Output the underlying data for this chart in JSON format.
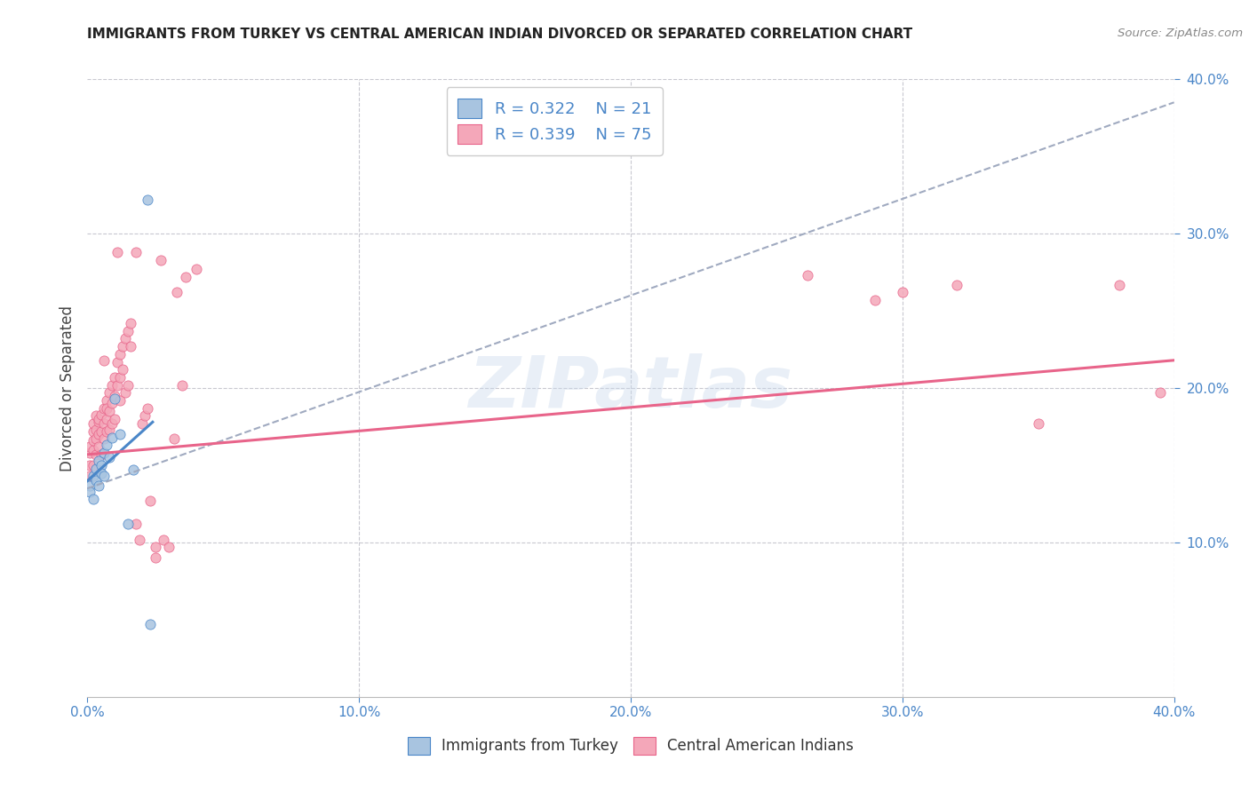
{
  "title": "IMMIGRANTS FROM TURKEY VS CENTRAL AMERICAN INDIAN DIVORCED OR SEPARATED CORRELATION CHART",
  "source": "Source: ZipAtlas.com",
  "ylabel": "Divorced or Separated",
  "xlim": [
    0.0,
    0.4
  ],
  "ylim": [
    0.0,
    0.4
  ],
  "xticks": [
    0.0,
    0.1,
    0.2,
    0.3,
    0.4
  ],
  "yticks": [
    0.1,
    0.2,
    0.3,
    0.4
  ],
  "watermark": "ZIPatlas",
  "legend_r1": "R = 0.322",
  "legend_n1": "N = 21",
  "legend_r2": "R = 0.339",
  "legend_n2": "N = 75",
  "color_turkey": "#a8c4e0",
  "color_central": "#f4a7b9",
  "color_turkey_line": "#4a86c8",
  "color_central_line": "#e8648a",
  "color_dashed": "#a0aac0",
  "turkey_scatter": [
    [
      0.001,
      0.137
    ],
    [
      0.001,
      0.133
    ],
    [
      0.002,
      0.128
    ],
    [
      0.002,
      0.143
    ],
    [
      0.003,
      0.14
    ],
    [
      0.003,
      0.148
    ],
    [
      0.004,
      0.137
    ],
    [
      0.004,
      0.153
    ],
    [
      0.005,
      0.15
    ],
    [
      0.005,
      0.145
    ],
    [
      0.006,
      0.158
    ],
    [
      0.006,
      0.143
    ],
    [
      0.007,
      0.163
    ],
    [
      0.008,
      0.155
    ],
    [
      0.009,
      0.168
    ],
    [
      0.01,
      0.193
    ],
    [
      0.012,
      0.17
    ],
    [
      0.015,
      0.112
    ],
    [
      0.017,
      0.147
    ],
    [
      0.022,
      0.322
    ],
    [
      0.023,
      0.047
    ]
  ],
  "central_scatter": [
    [
      0.001,
      0.15
    ],
    [
      0.001,
      0.158
    ],
    [
      0.001,
      0.162
    ],
    [
      0.001,
      0.143
    ],
    [
      0.002,
      0.16
    ],
    [
      0.002,
      0.166
    ],
    [
      0.002,
      0.172
    ],
    [
      0.002,
      0.177
    ],
    [
      0.002,
      0.15
    ],
    [
      0.003,
      0.167
    ],
    [
      0.003,
      0.173
    ],
    [
      0.003,
      0.182
    ],
    [
      0.003,
      0.157
    ],
    [
      0.004,
      0.178
    ],
    [
      0.004,
      0.17
    ],
    [
      0.004,
      0.18
    ],
    [
      0.004,
      0.162
    ],
    [
      0.005,
      0.183
    ],
    [
      0.005,
      0.172
    ],
    [
      0.005,
      0.157
    ],
    [
      0.006,
      0.187
    ],
    [
      0.006,
      0.177
    ],
    [
      0.006,
      0.167
    ],
    [
      0.006,
      0.218
    ],
    [
      0.007,
      0.192
    ],
    [
      0.007,
      0.18
    ],
    [
      0.007,
      0.172
    ],
    [
      0.007,
      0.187
    ],
    [
      0.008,
      0.197
    ],
    [
      0.008,
      0.185
    ],
    [
      0.008,
      0.173
    ],
    [
      0.009,
      0.202
    ],
    [
      0.009,
      0.19
    ],
    [
      0.009,
      0.177
    ],
    [
      0.01,
      0.207
    ],
    [
      0.01,
      0.195
    ],
    [
      0.01,
      0.18
    ],
    [
      0.011,
      0.217
    ],
    [
      0.011,
      0.202
    ],
    [
      0.011,
      0.288
    ],
    [
      0.012,
      0.222
    ],
    [
      0.012,
      0.207
    ],
    [
      0.012,
      0.192
    ],
    [
      0.013,
      0.227
    ],
    [
      0.013,
      0.212
    ],
    [
      0.014,
      0.232
    ],
    [
      0.014,
      0.197
    ],
    [
      0.015,
      0.237
    ],
    [
      0.015,
      0.202
    ],
    [
      0.016,
      0.242
    ],
    [
      0.016,
      0.227
    ],
    [
      0.018,
      0.288
    ],
    [
      0.018,
      0.112
    ],
    [
      0.019,
      0.102
    ],
    [
      0.02,
      0.177
    ],
    [
      0.021,
      0.182
    ],
    [
      0.022,
      0.187
    ],
    [
      0.023,
      0.127
    ],
    [
      0.025,
      0.097
    ],
    [
      0.025,
      0.09
    ],
    [
      0.027,
      0.283
    ],
    [
      0.028,
      0.102
    ],
    [
      0.03,
      0.097
    ],
    [
      0.032,
      0.167
    ],
    [
      0.033,
      0.262
    ],
    [
      0.035,
      0.202
    ],
    [
      0.036,
      0.272
    ],
    [
      0.04,
      0.277
    ],
    [
      0.265,
      0.273
    ],
    [
      0.29,
      0.257
    ],
    [
      0.3,
      0.262
    ],
    [
      0.32,
      0.267
    ],
    [
      0.35,
      0.177
    ],
    [
      0.38,
      0.267
    ],
    [
      0.395,
      0.197
    ]
  ],
  "turkey_line_x": [
    0.0,
    0.024
  ],
  "turkey_line_y": [
    0.14,
    0.178
  ],
  "central_line_x": [
    0.0,
    0.4
  ],
  "central_line_y": [
    0.157,
    0.218
  ],
  "dashed_line_x": [
    0.0,
    0.4
  ],
  "dashed_line_y": [
    0.135,
    0.385
  ]
}
